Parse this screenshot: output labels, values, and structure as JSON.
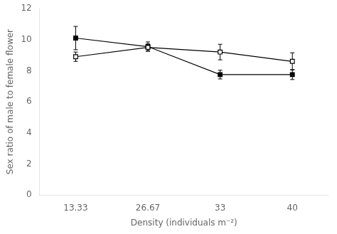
{
  "chart_data": {
    "type": "line",
    "xlabel": "Density (individuals m⁻²)",
    "ylabel": "Sex ratio of male to female flower",
    "categories": [
      "13.33",
      "26.67",
      "33",
      "40"
    ],
    "series": [
      {
        "color": "#000000",
        "marker": "square",
        "line_style": "solid",
        "values": [
          10.1,
          9.55,
          7.75,
          7.75
        ],
        "yerr": [
          0.75,
          0.3,
          0.28,
          0.32
        ]
      },
      {
        "color": "#000000",
        "marker": "open_square",
        "line_style": "solid",
        "values": [
          8.9,
          9.5,
          9.2,
          8.6
        ],
        "yerr": [
          0.3,
          0.22,
          0.5,
          0.55
        ]
      }
    ],
    "ylim": [
      0,
      12
    ],
    "yticks": [
      0,
      2,
      4,
      6,
      8,
      10,
      12
    ],
    "grid": false
  }
}
